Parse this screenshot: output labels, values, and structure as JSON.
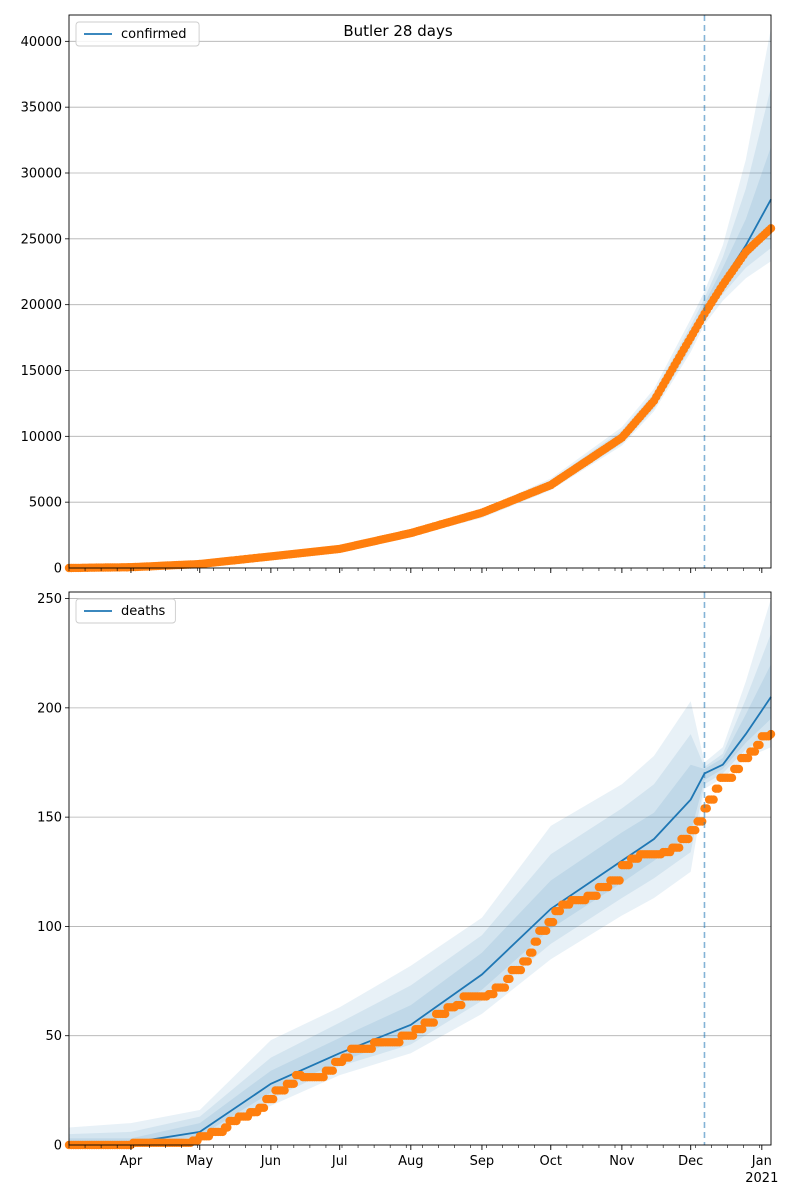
{
  "figure": {
    "title": "Butler 28 days"
  },
  "colors": {
    "fit_line": "#1f77b4",
    "band": "#1f77b4",
    "observed": "#ff7f0e",
    "forecast_marker": "#1f77b4",
    "grid": "#b0b0b0"
  },
  "x_axis": {
    "start": "2020-03-05",
    "end": "2021-01-05",
    "ticks": [
      {
        "date": "2020-04-01",
        "label": "Apr"
      },
      {
        "date": "2020-05-01",
        "label": "May"
      },
      {
        "date": "2020-06-01",
        "label": "Jun"
      },
      {
        "date": "2020-07-01",
        "label": "Jul"
      },
      {
        "date": "2020-08-01",
        "label": "Aug"
      },
      {
        "date": "2020-09-01",
        "label": "Sep"
      },
      {
        "date": "2020-10-01",
        "label": "Oct"
      },
      {
        "date": "2020-11-01",
        "label": "Nov"
      },
      {
        "date": "2020-12-01",
        "label": "Dec"
      },
      {
        "date": "2021-01-01",
        "label": "Jan"
      }
    ],
    "year_label": "2021",
    "forecast_start": "2020-12-07"
  },
  "chart_data": [
    {
      "type": "line",
      "legend": "confirmed",
      "legend_position": "upper-left",
      "grid": "y",
      "ylim": [
        0,
        42000
      ],
      "yticks": [
        0,
        5000,
        10000,
        15000,
        20000,
        25000,
        30000,
        35000,
        40000
      ],
      "fit": {
        "x": [
          "2020-03-05",
          "2020-04-01",
          "2020-05-01",
          "2020-06-01",
          "2020-07-01",
          "2020-08-01",
          "2020-09-01",
          "2020-10-01",
          "2020-11-01",
          "2020-11-15",
          "2020-12-01",
          "2020-12-07",
          "2020-12-15",
          "2020-12-25",
          "2021-01-05"
        ],
        "y": [
          20,
          90,
          330,
          900,
          1500,
          2650,
          4100,
          6300,
          9900,
          12600,
          17400,
          19600,
          21800,
          24500,
          28000
        ]
      },
      "bands": [
        {
          "lower": [
            0,
            70,
            270,
            800,
            1350,
            2450,
            3800,
            5900,
            9300,
            11900,
            16400,
            18500,
            20300,
            22000,
            23300
          ],
          "upper": [
            60,
            120,
            400,
            1020,
            1700,
            2900,
            4450,
            6800,
            10700,
            13600,
            18900,
            21000,
            24500,
            31000,
            41000
          ]
        },
        {
          "lower": [
            5,
            75,
            285,
            830,
            1400,
            2500,
            3900,
            6000,
            9450,
            12100,
            16700,
            18900,
            20800,
            22800,
            24300
          ],
          "upper": [
            45,
            110,
            375,
            980,
            1630,
            2830,
            4350,
            6650,
            10450,
            13300,
            18400,
            20500,
            23600,
            28800,
            36500
          ]
        },
        {
          "lower": [
            10,
            80,
            300,
            860,
            1440,
            2560,
            3980,
            6120,
            9620,
            12300,
            16950,
            19150,
            21200,
            23500,
            25500
          ],
          "upper": [
            35,
            100,
            360,
            950,
            1570,
            2760,
            4250,
            6500,
            10200,
            12950,
            17950,
            20100,
            22800,
            26500,
            32000
          ]
        }
      ],
      "observed": {
        "start": "2020-03-05",
        "end": "2021-01-05",
        "anchors": [
          [
            "2020-03-05",
            0
          ],
          [
            "2020-04-01",
            60
          ],
          [
            "2020-05-01",
            300
          ],
          [
            "2020-06-01",
            880
          ],
          [
            "2020-07-01",
            1450
          ],
          [
            "2020-08-01",
            2650
          ],
          [
            "2020-09-01",
            4200
          ],
          [
            "2020-10-01",
            6300
          ],
          [
            "2020-11-01",
            9900
          ],
          [
            "2020-11-15",
            12700
          ],
          [
            "2020-12-01",
            17500
          ],
          [
            "2020-12-07",
            19300
          ],
          [
            "2020-12-15",
            21500
          ],
          [
            "2020-12-25",
            24000
          ],
          [
            "2021-01-05",
            25800
          ]
        ]
      }
    },
    {
      "type": "line",
      "legend": "deaths",
      "legend_position": "upper-left",
      "grid": "y",
      "ylim": [
        0,
        253
      ],
      "yticks": [
        0,
        50,
        100,
        150,
        200,
        250
      ],
      "fit": {
        "x": [
          "2020-03-05",
          "2020-04-01",
          "2020-05-01",
          "2020-06-01",
          "2020-07-01",
          "2020-08-01",
          "2020-09-01",
          "2020-10-01",
          "2020-11-01",
          "2020-11-15",
          "2020-12-01",
          "2020-12-07",
          "2020-12-15",
          "2020-12-25",
          "2021-01-05"
        ],
        "y": [
          0,
          1,
          6,
          28,
          42,
          55,
          78,
          108,
          130,
          140,
          158,
          170,
          174,
          188,
          205
        ]
      },
      "bands": [
        {
          "lower": [
            0,
            0,
            2,
            18,
            32,
            42,
            60,
            85,
            105,
            113,
            125,
            163,
            168,
            177,
            182
          ],
          "upper": [
            8,
            10,
            16,
            48,
            63,
            82,
            104,
            146,
            165,
            178,
            203,
            175,
            182,
            212,
            250
          ]
        },
        {
          "lower": [
            0,
            0,
            3,
            21,
            36,
            46,
            66,
            92,
            113,
            122,
            134,
            165,
            170,
            181,
            188
          ],
          "upper": [
            5,
            6,
            13,
            40,
            56,
            73,
            96,
            133,
            154,
            165,
            188,
            173,
            179,
            204,
            234
          ]
        },
        {
          "lower": [
            0,
            0,
            4,
            24,
            38,
            50,
            71,
            99,
            120,
            130,
            143,
            167,
            172,
            184,
            195
          ],
          "upper": [
            3,
            3,
            10,
            34,
            49,
            64,
            88,
            121,
            143,
            152,
            174,
            172,
            177,
            197,
            220
          ]
        }
      ],
      "observed": {
        "points": [
          [
            "2020-03-05",
            0
          ],
          [
            "2020-04-01",
            0
          ],
          [
            "2020-04-02",
            1
          ],
          [
            "2020-04-26",
            1
          ],
          [
            "2020-04-28",
            2
          ],
          [
            "2020-05-01",
            4
          ],
          [
            "2020-05-06",
            6
          ],
          [
            "2020-05-12",
            8
          ],
          [
            "2020-05-14",
            11
          ],
          [
            "2020-05-18",
            13
          ],
          [
            "2020-05-23",
            15
          ],
          [
            "2020-05-27",
            17
          ],
          [
            "2020-05-30",
            21
          ],
          [
            "2020-06-03",
            25
          ],
          [
            "2020-06-08",
            28
          ],
          [
            "2020-06-12",
            32
          ],
          [
            "2020-06-15",
            31
          ],
          [
            "2020-06-25",
            34
          ],
          [
            "2020-06-29",
            38
          ],
          [
            "2020-07-03",
            40
          ],
          [
            "2020-07-06",
            44
          ],
          [
            "2020-07-14",
            44
          ],
          [
            "2020-07-16",
            47
          ],
          [
            "2020-07-24",
            47
          ],
          [
            "2020-07-28",
            50
          ],
          [
            "2020-08-03",
            53
          ],
          [
            "2020-08-07",
            56
          ],
          [
            "2020-08-12",
            60
          ],
          [
            "2020-08-17",
            63
          ],
          [
            "2020-08-21",
            64
          ],
          [
            "2020-08-24",
            68
          ],
          [
            "2020-09-04",
            69
          ],
          [
            "2020-09-07",
            72
          ],
          [
            "2020-09-12",
            76
          ],
          [
            "2020-09-14",
            80
          ],
          [
            "2020-09-19",
            84
          ],
          [
            "2020-09-22",
            88
          ],
          [
            "2020-09-24",
            93
          ],
          [
            "2020-09-26",
            98
          ],
          [
            "2020-09-30",
            102
          ],
          [
            "2020-10-03",
            107
          ],
          [
            "2020-10-06",
            110
          ],
          [
            "2020-10-10",
            112
          ],
          [
            "2020-10-17",
            114
          ],
          [
            "2020-10-22",
            118
          ],
          [
            "2020-10-27",
            121
          ],
          [
            "2020-11-01",
            128
          ],
          [
            "2020-11-05",
            131
          ],
          [
            "2020-11-09",
            133
          ],
          [
            "2020-11-19",
            134
          ],
          [
            "2020-11-23",
            136
          ],
          [
            "2020-11-27",
            140
          ],
          [
            "2020-12-01",
            144
          ],
          [
            "2020-12-04",
            148
          ],
          [
            "2020-12-07",
            154
          ],
          [
            "2020-12-09",
            158
          ],
          [
            "2020-12-12",
            163
          ],
          [
            "2020-12-14",
            168
          ],
          [
            "2020-12-20",
            172
          ],
          [
            "2020-12-23",
            177
          ],
          [
            "2020-12-27",
            180
          ],
          [
            "2020-12-30",
            183
          ],
          [
            "2021-01-01",
            187
          ],
          [
            "2021-01-05",
            188
          ]
        ]
      }
    }
  ]
}
